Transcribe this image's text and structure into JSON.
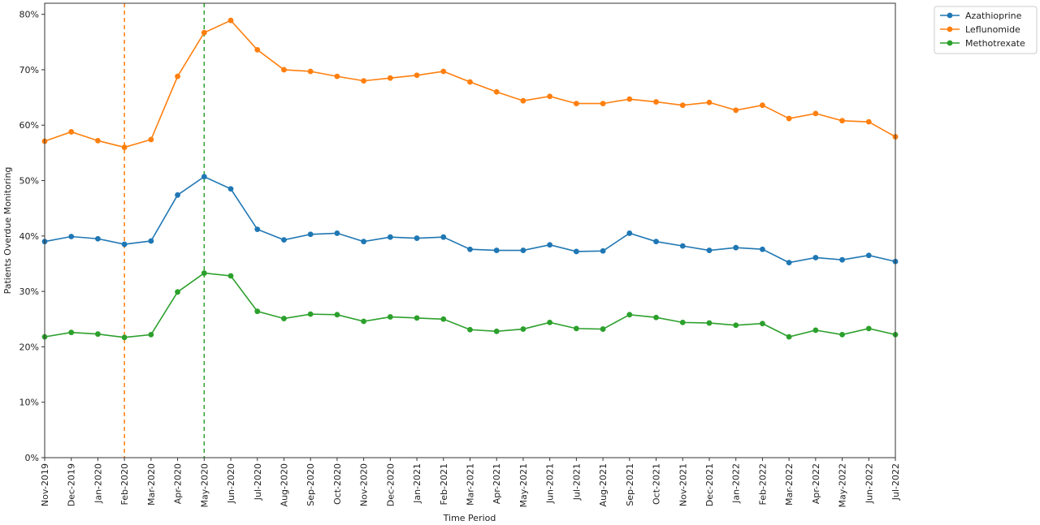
{
  "chart_data": {
    "type": "line",
    "title": "",
    "xlabel": "Time Period",
    "ylabel": "Patients Overdue Monitoring",
    "ylim": [
      0,
      82
    ],
    "yticks": [
      0,
      10,
      20,
      30,
      40,
      50,
      60,
      70,
      80
    ],
    "ytick_labels": [
      "0%",
      "10%",
      "20%",
      "30%",
      "40%",
      "50%",
      "60%",
      "70%",
      "80%"
    ],
    "grid": false,
    "legend_position": "outside-top-right",
    "categories": [
      "Nov-2019",
      "Dec-2019",
      "Jan-2020",
      "Feb-2020",
      "Mar-2020",
      "Apr-2020",
      "May-2020",
      "Jun-2020",
      "Jul-2020",
      "Aug-2020",
      "Sep-2020",
      "Oct-2020",
      "Nov-2020",
      "Dec-2020",
      "Jan-2021",
      "Feb-2021",
      "Mar-2021",
      "Apr-2021",
      "May-2021",
      "Jun-2021",
      "Jul-2021",
      "Aug-2021",
      "Sep-2021",
      "Oct-2021",
      "Nov-2021",
      "Dec-2021",
      "Jan-2022",
      "Feb-2022",
      "Mar-2022",
      "Apr-2022",
      "May-2022",
      "Jun-2022",
      "Jul-2022"
    ],
    "series": [
      {
        "name": "Azathioprine",
        "color": "#1f77b4",
        "values": [
          39.0,
          39.9,
          39.5,
          38.5,
          39.1,
          47.4,
          50.7,
          48.5,
          41.2,
          39.3,
          40.3,
          40.5,
          39.0,
          39.8,
          39.6,
          39.8,
          37.6,
          37.4,
          37.4,
          38.4,
          37.2,
          37.3,
          40.5,
          39.0,
          38.2,
          37.4,
          37.9,
          37.6,
          35.2,
          36.1,
          35.7,
          36.5,
          35.4
        ]
      },
      {
        "name": "Leflunomide",
        "color": "#ff7f0e",
        "values": [
          57.1,
          58.8,
          57.2,
          56.0,
          57.4,
          68.8,
          76.7,
          78.9,
          73.6,
          70.0,
          69.7,
          68.8,
          68.0,
          68.5,
          69.0,
          69.7,
          67.8,
          66.0,
          64.4,
          65.2,
          63.9,
          63.9,
          64.7,
          64.2,
          63.6,
          64.1,
          62.7,
          63.6,
          61.2,
          62.1,
          60.8,
          60.6,
          57.9
        ]
      },
      {
        "name": "Methotrexate",
        "color": "#2ca02c",
        "values": [
          21.8,
          22.6,
          22.3,
          21.7,
          22.2,
          29.9,
          33.3,
          32.8,
          26.4,
          25.1,
          25.9,
          25.8,
          24.6,
          25.4,
          25.2,
          25.0,
          23.1,
          22.8,
          23.2,
          24.4,
          23.3,
          23.2,
          25.8,
          25.3,
          24.4,
          24.3,
          23.9,
          24.2,
          21.8,
          23.0,
          22.2,
          23.3,
          22.2
        ]
      }
    ],
    "vertical_lines": [
      {
        "x": "Feb-2020",
        "color": "#ff7f0e",
        "style": "dashed"
      },
      {
        "x": "May-2020",
        "color": "#2ca02c",
        "style": "dashed"
      }
    ]
  }
}
